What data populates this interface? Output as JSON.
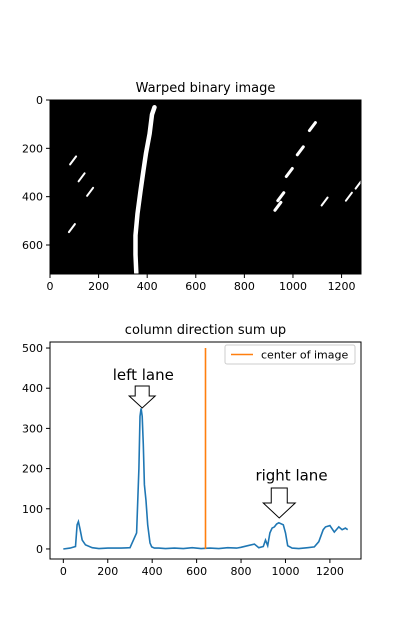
{
  "chart_data": [
    {
      "type": "image",
      "title": "Warped binary image",
      "xlim": [
        0,
        1280
      ],
      "ylim": [
        720,
        0
      ],
      "xticks": [
        0,
        200,
        400,
        600,
        800,
        1000,
        1200
      ],
      "yticks": [
        0,
        200,
        400,
        600
      ],
      "background": "#000000",
      "pixels_color": "#ffffff",
      "lane_pixel_groups": [
        {
          "name": "left lane line",
          "points": [
            [
              355,
              715
            ],
            [
              352,
              640
            ],
            [
              352,
              560
            ],
            [
              360,
              470
            ],
            [
              372,
              380
            ],
            [
              385,
              290
            ],
            [
              395,
              220
            ],
            [
              410,
              140
            ],
            [
              420,
              60
            ],
            [
              430,
              30
            ]
          ]
        },
        {
          "name": "right lane dashes",
          "points": [
            [
              938,
              440
            ],
            [
              950,
              400
            ],
            [
              985,
              300
            ],
            [
              1030,
              210
            ],
            [
              1080,
              110
            ]
          ]
        },
        {
          "name": "left edge streaks",
          "points": [
            [
              95,
              250
            ],
            [
              130,
              320
            ],
            [
              165,
              380
            ],
            [
              90,
              530
            ]
          ]
        },
        {
          "name": "right edge streaks",
          "points": [
            [
              1130,
              420
            ],
            [
              1230,
              400
            ],
            [
              1270,
              350
            ]
          ]
        }
      ]
    },
    {
      "type": "line",
      "title": "column direction sum up",
      "xlim": [
        -60,
        1340
      ],
      "ylim": [
        -25,
        515
      ],
      "xticks": [
        0,
        200,
        400,
        600,
        800,
        1000,
        1200
      ],
      "yticks": [
        0,
        100,
        200,
        300,
        400,
        500
      ],
      "series": [
        {
          "color": "#1f77b4",
          "x": [
            0,
            30,
            55,
            62,
            68,
            75,
            85,
            100,
            130,
            160,
            200,
            260,
            300,
            330,
            340,
            345,
            350,
            355,
            360,
            365,
            372,
            380,
            390,
            398,
            410,
            430,
            460,
            500,
            540,
            580,
            620,
            660,
            700,
            740,
            780,
            800,
            830,
            860,
            880,
            900,
            910,
            920,
            930,
            940,
            950,
            960,
            970,
            990,
            1000,
            1010,
            1030,
            1060,
            1100,
            1130,
            1150,
            1170,
            1180,
            1200,
            1220,
            1240,
            1255,
            1270,
            1280
          ],
          "y": [
            0,
            2,
            6,
            60,
            68,
            50,
            22,
            10,
            3,
            1,
            2,
            2,
            3,
            40,
            200,
            330,
            350,
            330,
            260,
            160,
            120,
            60,
            15,
            5,
            2,
            2,
            1,
            2,
            1,
            3,
            1,
            2,
            1,
            3,
            2,
            4,
            8,
            12,
            3,
            6,
            22,
            8,
            40,
            52,
            55,
            62,
            65,
            60,
            40,
            8,
            2,
            1,
            3,
            5,
            18,
            48,
            55,
            58,
            42,
            55,
            48,
            52,
            48
          ]
        },
        {
          "name": "center of image",
          "color": "#ff7f0e",
          "x": [
            640,
            640
          ],
          "y": [
            0,
            500
          ]
        }
      ],
      "annotations": [
        {
          "text": "left lane",
          "x": 360,
          "y": 420
        },
        {
          "text": "right lane",
          "x": 1000,
          "y": 170
        }
      ],
      "legend": "top-right"
    }
  ]
}
